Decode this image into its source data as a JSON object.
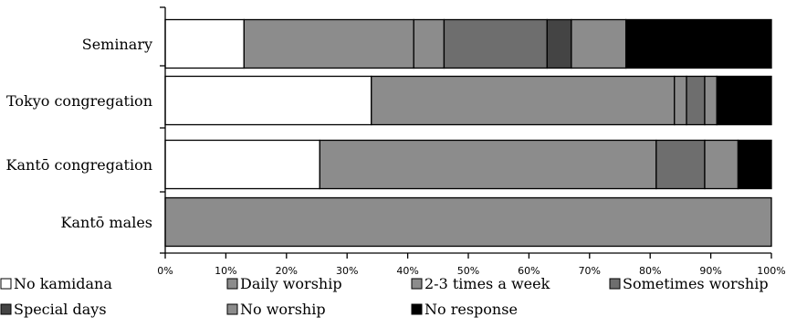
{
  "chart_data": {
    "type": "bar",
    "orientation": "horizontal",
    "stacked": "percent",
    "categories": [
      "Seminary",
      "Tokyo congregation",
      "Kantō congregation",
      "Kantō males"
    ],
    "x_ticks": [
      "0%",
      "10%",
      "20%",
      "30%",
      "40%",
      "50%",
      "60%",
      "70%",
      "80%",
      "90%",
      "100%"
    ],
    "xlim": [
      0,
      100
    ],
    "grid": false,
    "legend_position": "bottom",
    "series": [
      {
        "name": "No kamidana",
        "color": "#ffffff",
        "values": [
          13,
          34,
          25.5,
          0
        ]
      },
      {
        "name": "Daily worship",
        "color": "#8c8c8c",
        "values": [
          28,
          50,
          55.5,
          100
        ]
      },
      {
        "name": "2-3 times a week",
        "color": "#8c8c8c",
        "values": [
          5,
          2,
          0,
          0
        ]
      },
      {
        "name": "Sometimes worship",
        "color": "#6e6e6e",
        "values": [
          17,
          3,
          8,
          0
        ]
      },
      {
        "name": "Special days",
        "color": "#444444",
        "values": [
          4,
          0,
          0,
          0
        ]
      },
      {
        "name": "No worship",
        "color": "#8c8c8c",
        "values": [
          9,
          2,
          5.5,
          0
        ]
      },
      {
        "name": "No response",
        "color": "#000000",
        "values": [
          24,
          9,
          5.5,
          0
        ]
      }
    ]
  }
}
